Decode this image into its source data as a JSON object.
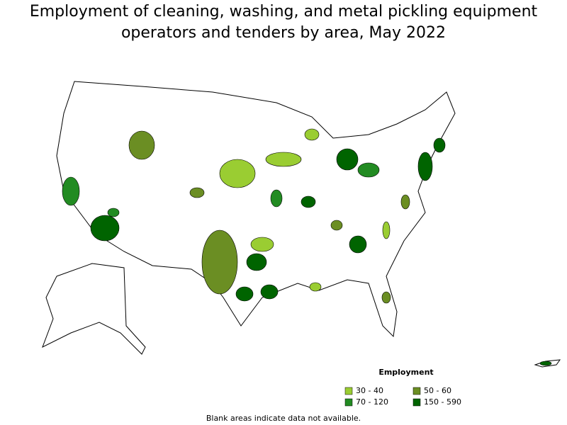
{
  "title": "Employment of cleaning, washing, and metal pickling equipment operators and tenders by area, May 2022",
  "legend": {
    "title": "Employment",
    "items": [
      {
        "label": "30 - 40",
        "color": "#9acd32"
      },
      {
        "label": "50 - 60",
        "color": "#6b8e23"
      },
      {
        "label": "70 - 120",
        "color": "#228b22"
      },
      {
        "label": "150 - 590",
        "color": "#006400"
      }
    ]
  },
  "note": "Blank areas indicate data not available."
}
